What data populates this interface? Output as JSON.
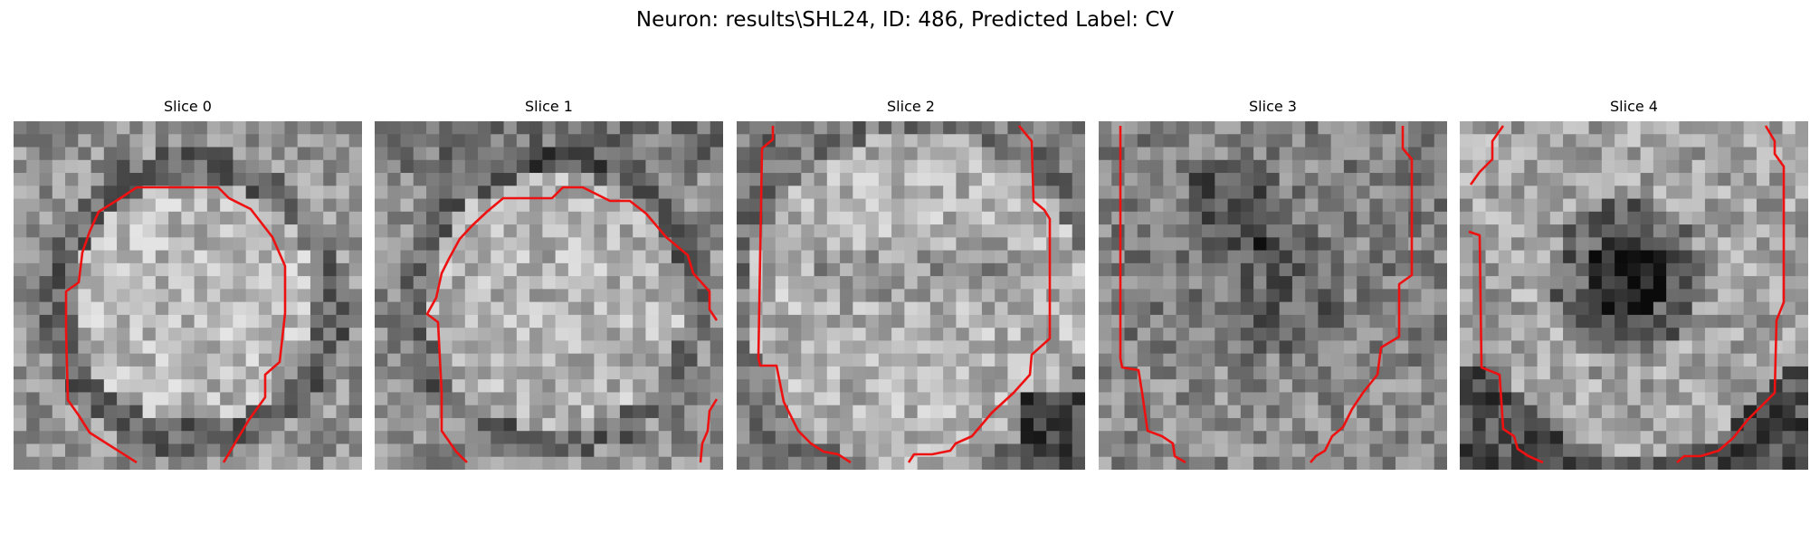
{
  "figure": {
    "title": "Neuron: results\\SHL24, ID: 486, Predicted Label: CV",
    "contour_color": "#ee1111"
  },
  "panels": [
    {
      "label": "Slice 0"
    },
    {
      "label": "Slice 1"
    },
    {
      "label": "Slice 2"
    },
    {
      "label": "Slice 3"
    },
    {
      "label": "Slice 4"
    }
  ]
}
